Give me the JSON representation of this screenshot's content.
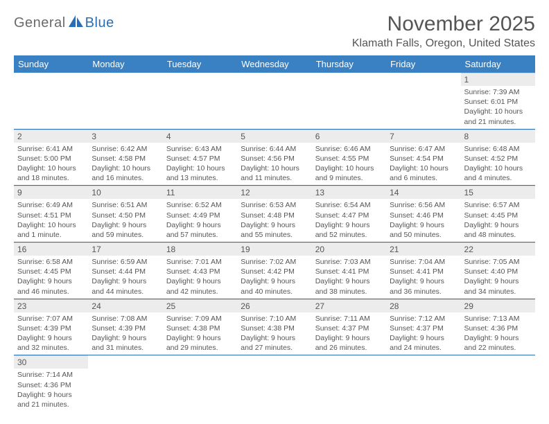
{
  "logo": {
    "text1": "General",
    "text2": "Blue"
  },
  "title": "November 2025",
  "location": "Klamath Falls, Oregon, United States",
  "colors": {
    "header_bg": "#3a81c4",
    "header_text": "#ffffff",
    "daynum_bg": "#ececec",
    "border": "#2a6fb5",
    "logo_gray": "#6a6a6a",
    "logo_blue": "#2a6fb5",
    "body_text": "#555555"
  },
  "weekdays": [
    "Sunday",
    "Monday",
    "Tuesday",
    "Wednesday",
    "Thursday",
    "Friday",
    "Saturday"
  ],
  "weeks": [
    [
      null,
      null,
      null,
      null,
      null,
      null,
      {
        "n": "1",
        "sunrise": "7:39 AM",
        "sunset": "6:01 PM",
        "dl": "10 hours and 21 minutes."
      }
    ],
    [
      {
        "n": "2",
        "sunrise": "6:41 AM",
        "sunset": "5:00 PM",
        "dl": "10 hours and 18 minutes."
      },
      {
        "n": "3",
        "sunrise": "6:42 AM",
        "sunset": "4:58 PM",
        "dl": "10 hours and 16 minutes."
      },
      {
        "n": "4",
        "sunrise": "6:43 AM",
        "sunset": "4:57 PM",
        "dl": "10 hours and 13 minutes."
      },
      {
        "n": "5",
        "sunrise": "6:44 AM",
        "sunset": "4:56 PM",
        "dl": "10 hours and 11 minutes."
      },
      {
        "n": "6",
        "sunrise": "6:46 AM",
        "sunset": "4:55 PM",
        "dl": "10 hours and 9 minutes."
      },
      {
        "n": "7",
        "sunrise": "6:47 AM",
        "sunset": "4:54 PM",
        "dl": "10 hours and 6 minutes."
      },
      {
        "n": "8",
        "sunrise": "6:48 AM",
        "sunset": "4:52 PM",
        "dl": "10 hours and 4 minutes."
      }
    ],
    [
      {
        "n": "9",
        "sunrise": "6:49 AM",
        "sunset": "4:51 PM",
        "dl": "10 hours and 1 minute."
      },
      {
        "n": "10",
        "sunrise": "6:51 AM",
        "sunset": "4:50 PM",
        "dl": "9 hours and 59 minutes."
      },
      {
        "n": "11",
        "sunrise": "6:52 AM",
        "sunset": "4:49 PM",
        "dl": "9 hours and 57 minutes."
      },
      {
        "n": "12",
        "sunrise": "6:53 AM",
        "sunset": "4:48 PM",
        "dl": "9 hours and 55 minutes."
      },
      {
        "n": "13",
        "sunrise": "6:54 AM",
        "sunset": "4:47 PM",
        "dl": "9 hours and 52 minutes."
      },
      {
        "n": "14",
        "sunrise": "6:56 AM",
        "sunset": "4:46 PM",
        "dl": "9 hours and 50 minutes."
      },
      {
        "n": "15",
        "sunrise": "6:57 AM",
        "sunset": "4:45 PM",
        "dl": "9 hours and 48 minutes."
      }
    ],
    [
      {
        "n": "16",
        "sunrise": "6:58 AM",
        "sunset": "4:45 PM",
        "dl": "9 hours and 46 minutes."
      },
      {
        "n": "17",
        "sunrise": "6:59 AM",
        "sunset": "4:44 PM",
        "dl": "9 hours and 44 minutes."
      },
      {
        "n": "18",
        "sunrise": "7:01 AM",
        "sunset": "4:43 PM",
        "dl": "9 hours and 42 minutes."
      },
      {
        "n": "19",
        "sunrise": "7:02 AM",
        "sunset": "4:42 PM",
        "dl": "9 hours and 40 minutes."
      },
      {
        "n": "20",
        "sunrise": "7:03 AM",
        "sunset": "4:41 PM",
        "dl": "9 hours and 38 minutes."
      },
      {
        "n": "21",
        "sunrise": "7:04 AM",
        "sunset": "4:41 PM",
        "dl": "9 hours and 36 minutes."
      },
      {
        "n": "22",
        "sunrise": "7:05 AM",
        "sunset": "4:40 PM",
        "dl": "9 hours and 34 minutes."
      }
    ],
    [
      {
        "n": "23",
        "sunrise": "7:07 AM",
        "sunset": "4:39 PM",
        "dl": "9 hours and 32 minutes."
      },
      {
        "n": "24",
        "sunrise": "7:08 AM",
        "sunset": "4:39 PM",
        "dl": "9 hours and 31 minutes."
      },
      {
        "n": "25",
        "sunrise": "7:09 AM",
        "sunset": "4:38 PM",
        "dl": "9 hours and 29 minutes."
      },
      {
        "n": "26",
        "sunrise": "7:10 AM",
        "sunset": "4:38 PM",
        "dl": "9 hours and 27 minutes."
      },
      {
        "n": "27",
        "sunrise": "7:11 AM",
        "sunset": "4:37 PM",
        "dl": "9 hours and 26 minutes."
      },
      {
        "n": "28",
        "sunrise": "7:12 AM",
        "sunset": "4:37 PM",
        "dl": "9 hours and 24 minutes."
      },
      {
        "n": "29",
        "sunrise": "7:13 AM",
        "sunset": "4:36 PM",
        "dl": "9 hours and 22 minutes."
      }
    ],
    [
      {
        "n": "30",
        "sunrise": "7:14 AM",
        "sunset": "4:36 PM",
        "dl": "9 hours and 21 minutes."
      },
      null,
      null,
      null,
      null,
      null,
      null
    ]
  ]
}
